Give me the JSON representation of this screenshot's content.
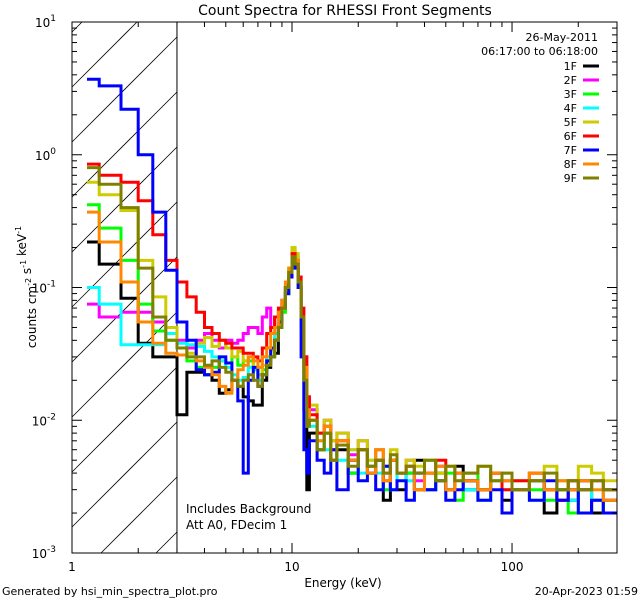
{
  "chart_data": {
    "type": "line",
    "title": "Count Spectra for RHESSI Front Segments",
    "xlabel": "Energy (keV)",
    "ylabel": "counts cm-2 s-1 keV-1",
    "xscale": "log",
    "yscale": "log",
    "xlim": [
      1,
      300
    ],
    "ylim": [
      0.001,
      10
    ],
    "x_tick_labels": [
      {
        "v": 1,
        "t": "1"
      },
      {
        "v": 10,
        "t": "10"
      },
      {
        "v": 100,
        "t": "100"
      }
    ],
    "y_tick_labels": [
      {
        "v": 0.001,
        "t": "-3"
      },
      {
        "v": 0.01,
        "t": "-2"
      },
      {
        "v": 0.1,
        "t": "-1"
      },
      {
        "v": 1,
        "t": "0"
      },
      {
        "v": 10,
        "t": "1"
      }
    ],
    "date": "26-May-2011",
    "time_range": "06:17:00 to 06:18:00",
    "excluded_region_max_kev": 3,
    "annotations": [
      "Includes Background",
      "Att A0, FDecim 1"
    ],
    "legend_placement": "top-right",
    "energy_edges": [
      1.17,
      1.33,
      1.67,
      2,
      2.33,
      2.67,
      3,
      3.33,
      3.67,
      4,
      4.33,
      4.67,
      5,
      5.33,
      5.67,
      6,
      6.33,
      6.67,
      7,
      7.33,
      7.67,
      8,
      8.33,
      8.67,
      9,
      9.33,
      9.67,
      10,
      10.33,
      10.67,
      11,
      11.33,
      11.67,
      12,
      13,
      14,
      15,
      16,
      18,
      20,
      22,
      24,
      26,
      28,
      30,
      33,
      36,
      40,
      45,
      50,
      55,
      60,
      70,
      80,
      90,
      100,
      120,
      140,
      160,
      180,
      200,
      230,
      260,
      300
    ],
    "series": [
      {
        "name": "1F",
        "color": "#000000",
        "values": [
          0.22,
          0.15,
          0.083,
          0.038,
          0.03,
          0.03,
          0.011,
          0.023,
          0.023,
          0.022,
          0.02,
          0.016,
          0.017,
          0.02,
          0.018,
          0.015,
          0.014,
          0.013,
          0.013,
          0.02,
          0.025,
          0.03,
          0.032,
          0.05,
          0.07,
          0.09,
          0.12,
          0.16,
          0.15,
          0.1,
          0.05,
          0.012,
          0.003,
          0.008,
          0.006,
          0.008,
          0.005,
          0.006,
          0.004,
          0.006,
          0.004,
          0.005,
          0.0025,
          0.005,
          0.003,
          0.004,
          0.005,
          0.003,
          0.004,
          0.003,
          0.0045,
          0.003,
          0.003,
          0.004,
          0.0025,
          0.003,
          0.0035,
          0.002,
          0.003,
          0.0025,
          0.0035,
          0.002,
          0.0025
        ]
      },
      {
        "name": "2F",
        "color": "#ff00ff",
        "values": [
          0.075,
          0.06,
          0.065,
          0.065,
          0.055,
          0.05,
          0.04,
          0.035,
          0.04,
          0.045,
          0.04,
          0.035,
          0.04,
          0.038,
          0.04,
          0.045,
          0.05,
          0.05,
          0.045,
          0.06,
          0.07,
          0.05,
          0.06,
          0.065,
          0.08,
          0.1,
          0.12,
          0.16,
          0.15,
          0.11,
          0.06,
          0.03,
          0.015,
          0.012,
          0.008,
          0.01,
          0.007,
          0.008,
          0.0055,
          0.007,
          0.0045,
          0.006,
          0.004,
          0.005,
          0.004,
          0.005,
          0.0035,
          0.004,
          0.0045,
          0.003,
          0.004,
          0.0035,
          0.003,
          0.004,
          0.0035,
          0.003,
          0.004,
          0.003,
          0.0025,
          0.0035,
          0.003,
          0.0025,
          0.003
        ]
      },
      {
        "name": "3F",
        "color": "#00ff00",
        "values": [
          0.42,
          0.28,
          0.16,
          0.075,
          0.047,
          0.04,
          0.035,
          0.028,
          0.025,
          0.022,
          0.025,
          0.028,
          0.027,
          0.03,
          0.026,
          0.028,
          0.028,
          0.025,
          0.022,
          0.024,
          0.028,
          0.03,
          0.04,
          0.05,
          0.065,
          0.09,
          0.12,
          0.16,
          0.14,
          0.1,
          0.05,
          0.02,
          0.009,
          0.01,
          0.006,
          0.008,
          0.005,
          0.007,
          0.004,
          0.006,
          0.0045,
          0.005,
          0.003,
          0.005,
          0.004,
          0.004,
          0.003,
          0.005,
          0.0035,
          0.004,
          0.0025,
          0.004,
          0.003,
          0.0035,
          0.002,
          0.0035,
          0.003,
          0.0025,
          0.003,
          0.002,
          0.003,
          0.0025,
          0.002
        ]
      },
      {
        "name": "4F",
        "color": "#00ffff",
        "values": [
          0.1,
          0.075,
          0.037,
          0.037,
          0.037,
          0.045,
          0.038,
          0.037,
          0.036,
          0.033,
          0.03,
          0.028,
          0.025,
          0.022,
          0.02,
          0.021,
          0.025,
          0.024,
          0.02,
          0.022,
          0.03,
          0.035,
          0.045,
          0.06,
          0.08,
          0.11,
          0.14,
          0.19,
          0.17,
          0.11,
          0.05,
          0.02,
          0.01,
          0.009,
          0.007,
          0.006,
          0.007,
          0.005,
          0.006,
          0.004,
          0.005,
          0.004,
          0.0045,
          0.003,
          0.004,
          0.0035,
          0.004,
          0.003,
          0.0035,
          0.003,
          0.004,
          0.003,
          0.0025,
          0.0035,
          0.003,
          0.003,
          0.0025,
          0.003,
          0.0035,
          0.0025,
          0.003,
          0.0025,
          0.003
        ]
      },
      {
        "name": "5F",
        "color": "#cccc00",
        "values": [
          0.62,
          0.5,
          0.38,
          0.16,
          0.085,
          0.05,
          0.035,
          0.032,
          0.038,
          0.042,
          0.036,
          0.04,
          0.035,
          0.03,
          0.033,
          0.028,
          0.03,
          0.025,
          0.022,
          0.026,
          0.028,
          0.034,
          0.04,
          0.05,
          0.07,
          0.1,
          0.14,
          0.2,
          0.18,
          0.12,
          0.06,
          0.025,
          0.012,
          0.013,
          0.008,
          0.01,
          0.007,
          0.008,
          0.006,
          0.007,
          0.005,
          0.006,
          0.0045,
          0.006,
          0.004,
          0.005,
          0.0045,
          0.005,
          0.004,
          0.0045,
          0.0035,
          0.004,
          0.0045,
          0.0035,
          0.004,
          0.003,
          0.004,
          0.0045,
          0.0035,
          0.003,
          0.0045,
          0.004,
          0.0035
        ]
      },
      {
        "name": "6F",
        "color": "#ff0000",
        "values": [
          0.85,
          0.7,
          0.62,
          0.45,
          0.25,
          0.16,
          0.11,
          0.085,
          0.065,
          0.05,
          0.045,
          0.04,
          0.038,
          0.035,
          0.035,
          0.032,
          0.032,
          0.03,
          0.028,
          0.035,
          0.045,
          0.05,
          0.06,
          0.07,
          0.08,
          0.1,
          0.13,
          0.18,
          0.16,
          0.12,
          0.07,
          0.03,
          0.015,
          0.011,
          0.008,
          0.009,
          0.006,
          0.007,
          0.005,
          0.006,
          0.004,
          0.005,
          0.0035,
          0.005,
          0.004,
          0.0045,
          0.003,
          0.004,
          0.005,
          0.003,
          0.004,
          0.0035,
          0.003,
          0.004,
          0.003,
          0.0035,
          0.004,
          0.003,
          0.0025,
          0.0035,
          0.003,
          0.0035,
          0.003
        ]
      },
      {
        "name": "7F",
        "color": "#0000ff",
        "values": [
          3.7,
          3.3,
          2.2,
          1.0,
          0.37,
          0.135,
          0.055,
          0.04,
          0.024,
          0.022,
          0.023,
          0.03,
          0.027,
          0.02,
          0.014,
          0.004,
          0.02,
          0.025,
          0.018,
          0.022,
          0.028,
          0.035,
          0.04,
          0.055,
          0.07,
          0.09,
          0.12,
          0.15,
          0.14,
          0.1,
          0.03,
          0.006,
          0.004,
          0.007,
          0.005,
          0.004,
          0.006,
          0.003,
          0.005,
          0.0035,
          0.004,
          0.003,
          0.0045,
          0.003,
          0.0035,
          0.0025,
          0.004,
          0.003,
          0.0035,
          0.0025,
          0.003,
          0.0035,
          0.0025,
          0.003,
          0.002,
          0.003,
          0.0025,
          0.0035,
          0.0025,
          0.003,
          0.002,
          0.0025,
          0.002
        ]
      },
      {
        "name": "8F",
        "color": "#ff8800",
        "values": [
          0.37,
          0.22,
          0.11,
          0.055,
          0.038,
          0.032,
          0.031,
          0.03,
          0.028,
          0.025,
          0.022,
          0.018,
          0.016,
          0.02,
          0.024,
          0.026,
          0.03,
          0.028,
          0.025,
          0.03,
          0.035,
          0.045,
          0.05,
          0.065,
          0.08,
          0.11,
          0.14,
          0.17,
          0.16,
          0.11,
          0.06,
          0.025,
          0.012,
          0.01,
          0.007,
          0.009,
          0.005,
          0.007,
          0.005,
          0.006,
          0.004,
          0.006,
          0.0035,
          0.005,
          0.004,
          0.0045,
          0.003,
          0.004,
          0.0045,
          0.003,
          0.004,
          0.0035,
          0.003,
          0.004,
          0.0035,
          0.003,
          0.004,
          0.003,
          0.0035,
          0.003,
          0.0035,
          0.003,
          0.0025
        ]
      },
      {
        "name": "9F",
        "color": "#808000",
        "values": [
          0.8,
          0.6,
          0.4,
          0.14,
          0.06,
          0.04,
          0.035,
          0.03,
          0.03,
          0.026,
          0.028,
          0.025,
          0.023,
          0.02,
          0.018,
          0.02,
          0.022,
          0.02,
          0.018,
          0.022,
          0.026,
          0.03,
          0.04,
          0.05,
          0.07,
          0.1,
          0.13,
          0.17,
          0.15,
          0.11,
          0.06,
          0.02,
          0.009,
          0.01,
          0.006,
          0.008,
          0.005,
          0.0065,
          0.0045,
          0.006,
          0.0045,
          0.005,
          0.004,
          0.0055,
          0.004,
          0.0045,
          0.004,
          0.005,
          0.0035,
          0.0045,
          0.0035,
          0.004,
          0.0045,
          0.0035,
          0.004,
          0.003,
          0.0035,
          0.004,
          0.003,
          0.0035,
          0.003,
          0.0035,
          0.003
        ]
      }
    ]
  },
  "footer": {
    "generated_by": "Generated by hsi_min_spectra_plot.pro",
    "timestamp": "20-Apr-2023 01:59"
  }
}
